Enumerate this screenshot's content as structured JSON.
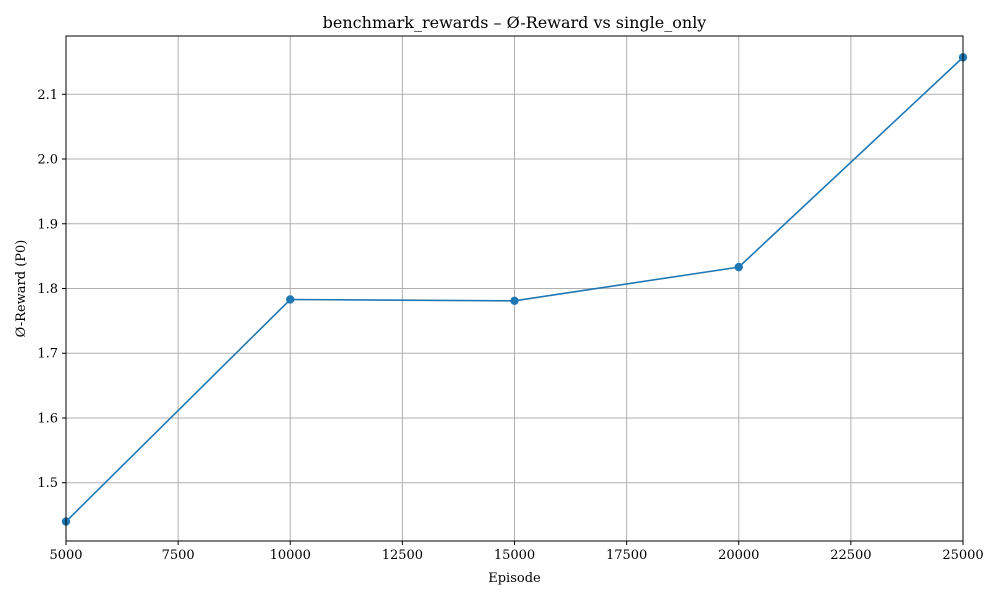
{
  "chart_data": {
    "type": "line",
    "title": "benchmark_rewards – Ø-Reward vs single_only",
    "xlabel": "Episode",
    "ylabel": "Ø-Reward (P0)",
    "xlim": [
      5000,
      25000
    ],
    "ylim": [
      1.41,
      2.19
    ],
    "xticks": [
      5000,
      7500,
      10000,
      12500,
      15000,
      17500,
      20000,
      22500,
      25000
    ],
    "yticks": [
      1.5,
      1.6,
      1.7,
      1.8,
      1.9,
      2.0,
      2.1
    ],
    "ytick_labels": [
      "1.5",
      "1.6",
      "1.7",
      "1.8",
      "1.9",
      "2.0",
      "2.1"
    ],
    "grid": true,
    "series": [
      {
        "color": "#1f77b4",
        "marker": "circle",
        "x": [
          5000,
          10000,
          15000,
          20000,
          25000
        ],
        "y": [
          1.44,
          1.783,
          1.781,
          1.833,
          2.157
        ]
      }
    ]
  }
}
